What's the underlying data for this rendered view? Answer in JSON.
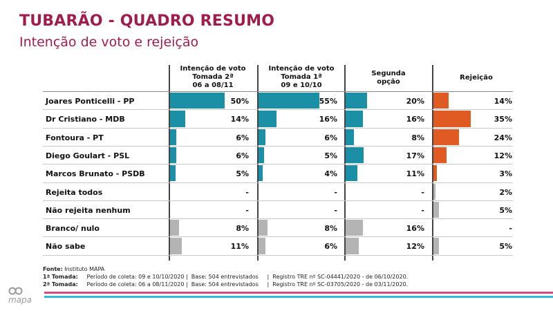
{
  "header": {
    "title": "TUBARÃO - QUADRO RESUMO",
    "subtitle": "Intenção de voto e rejeição"
  },
  "columns": [
    {
      "lines": [
        "Intenção de voto",
        "Tomada 2ª",
        "06 a 08/11"
      ]
    },
    {
      "lines": [
        "Intenção de voto",
        "Tomada 1ª",
        "09 e 10/10"
      ]
    },
    {
      "lines": [
        "Segunda",
        "opção"
      ]
    },
    {
      "lines": [
        "Rejeição"
      ]
    }
  ],
  "colors": {
    "teal": "#1b8fa6",
    "orange": "#e05a24",
    "gray": "#b4b4b4",
    "title": "#a01c4d",
    "stripe_pink": "#d44c7e",
    "stripe_blue": "#35b7d8"
  },
  "chart_data": {
    "type": "table",
    "title": "TUBARÃO - QUADRO RESUMO",
    "subtitle": "Intenção de voto e rejeição",
    "series": [
      {
        "name": "Intenção de voto Tomada 2ª 06 a 08/11",
        "values": [
          50,
          14,
          6,
          6,
          5,
          null,
          null,
          8,
          11
        ]
      },
      {
        "name": "Intenção de voto Tomada 1ª 09 e 10/10",
        "values": [
          55,
          16,
          6,
          5,
          4,
          null,
          null,
          8,
          6
        ]
      },
      {
        "name": "Segunda opção",
        "values": [
          20,
          16,
          8,
          17,
          11,
          null,
          null,
          16,
          12
        ]
      },
      {
        "name": "Rejeição",
        "values": [
          14,
          35,
          24,
          12,
          3,
          2,
          5,
          null,
          5
        ]
      }
    ],
    "rows": [
      {
        "label": "Joares Ponticelli - PP",
        "kind": "candidate",
        "cells": [
          "50%",
          "55%",
          "20%",
          "14%"
        ]
      },
      {
        "label": "Dr Cristiano - MDB",
        "kind": "candidate",
        "cells": [
          "14%",
          "16%",
          "16%",
          "35%"
        ]
      },
      {
        "label": "Fontoura - PT",
        "kind": "candidate",
        "cells": [
          "6%",
          "6%",
          "8%",
          "24%"
        ]
      },
      {
        "label": "Diego Goulart - PSL",
        "kind": "candidate",
        "cells": [
          "6%",
          "5%",
          "17%",
          "12%"
        ]
      },
      {
        "label": "Marcos Brunato - PSDB",
        "kind": "candidate",
        "cells": [
          "5%",
          "4%",
          "11%",
          "3%"
        ]
      },
      {
        "label": "Rejeita todos",
        "kind": "other",
        "cells": [
          "-",
          "-",
          "-",
          "2%"
        ]
      },
      {
        "label": "Não rejeita nenhum",
        "kind": "other",
        "cells": [
          "-",
          "-",
          "-",
          "5%"
        ]
      },
      {
        "label": "Branco/ nulo",
        "kind": "other",
        "cells": [
          "8%",
          "8%",
          "16%",
          "-"
        ]
      },
      {
        "label": "Não sabe",
        "kind": "other",
        "cells": [
          "11%",
          "6%",
          "12%",
          "5%"
        ]
      }
    ]
  },
  "footer": {
    "fonte_label": "Fonte:",
    "fonte_value": " Instituto MAPA",
    "t1_label": "1ª Tomada:",
    "t1_text": "     Período de coleta: 09 e 10/10/2020 |  Base: 504 entrevistados     |  Registro TRE nº SC-04441/2020 - de 06/10/2020.",
    "t2_label": "2ª Tomada:",
    "t2_text": "     Período de coleta: 06 a 08/11/2020 |  Base: 504 entrevistados     |  Registro TRE nº SC-03705/2020 - de 03/11/2020."
  },
  "logo": {
    "text": "mapa",
    "icon": "mapa-logo-icon"
  }
}
